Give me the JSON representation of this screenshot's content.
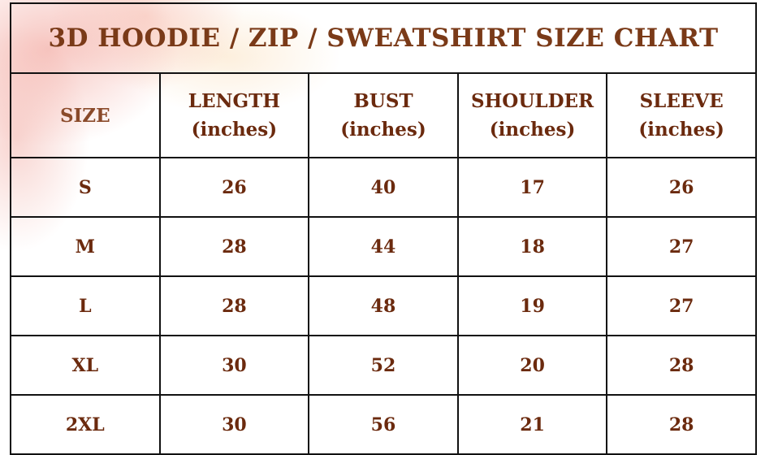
{
  "title": "3D HOODIE / ZIP / SWEATSHIRT SIZE CHART",
  "columns": [
    {
      "name": "SIZE",
      "unit": ""
    },
    {
      "name": "LENGTH",
      "unit": "(inches)"
    },
    {
      "name": "BUST",
      "unit": "(inches)"
    },
    {
      "name": "SHOULDER",
      "unit": "(inches)"
    },
    {
      "name": "SLEEVE",
      "unit": "(inches)"
    }
  ],
  "rows": [
    [
      "S",
      "26",
      "40",
      "17",
      "26"
    ],
    [
      "M",
      "28",
      "44",
      "18",
      "27"
    ],
    [
      "L",
      "28",
      "48",
      "19",
      "27"
    ],
    [
      "XL",
      "30",
      "52",
      "20",
      "28"
    ],
    [
      "2XL",
      "30",
      "56",
      "21",
      "28"
    ]
  ],
  "colors": {
    "text": "#6b2a0e",
    "border": "#111111",
    "wash": "#f0968c"
  }
}
